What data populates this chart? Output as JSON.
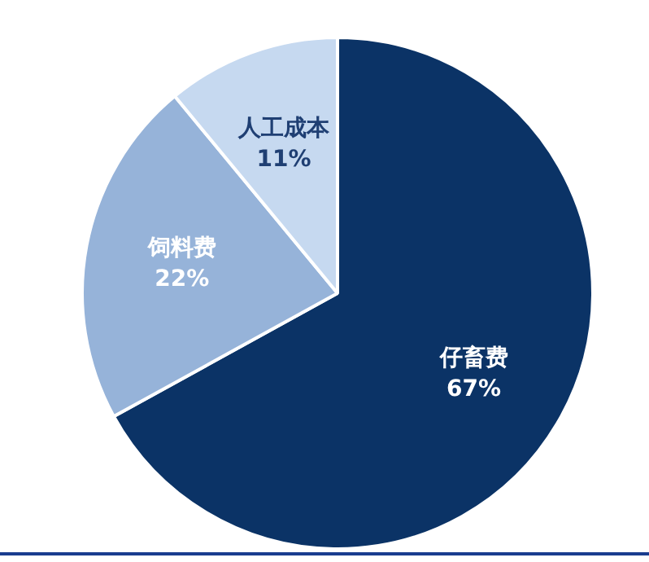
{
  "chart_data": {
    "type": "pie",
    "categories": [
      "仔畜费",
      "饲料费",
      "人工成本"
    ],
    "values": [
      67,
      22,
      11
    ],
    "colors": [
      "#0b3366",
      "#96b3d9",
      "#c6d9f0"
    ],
    "value_labels": [
      "67%",
      "22%",
      "11%"
    ],
    "legend": false
  }
}
